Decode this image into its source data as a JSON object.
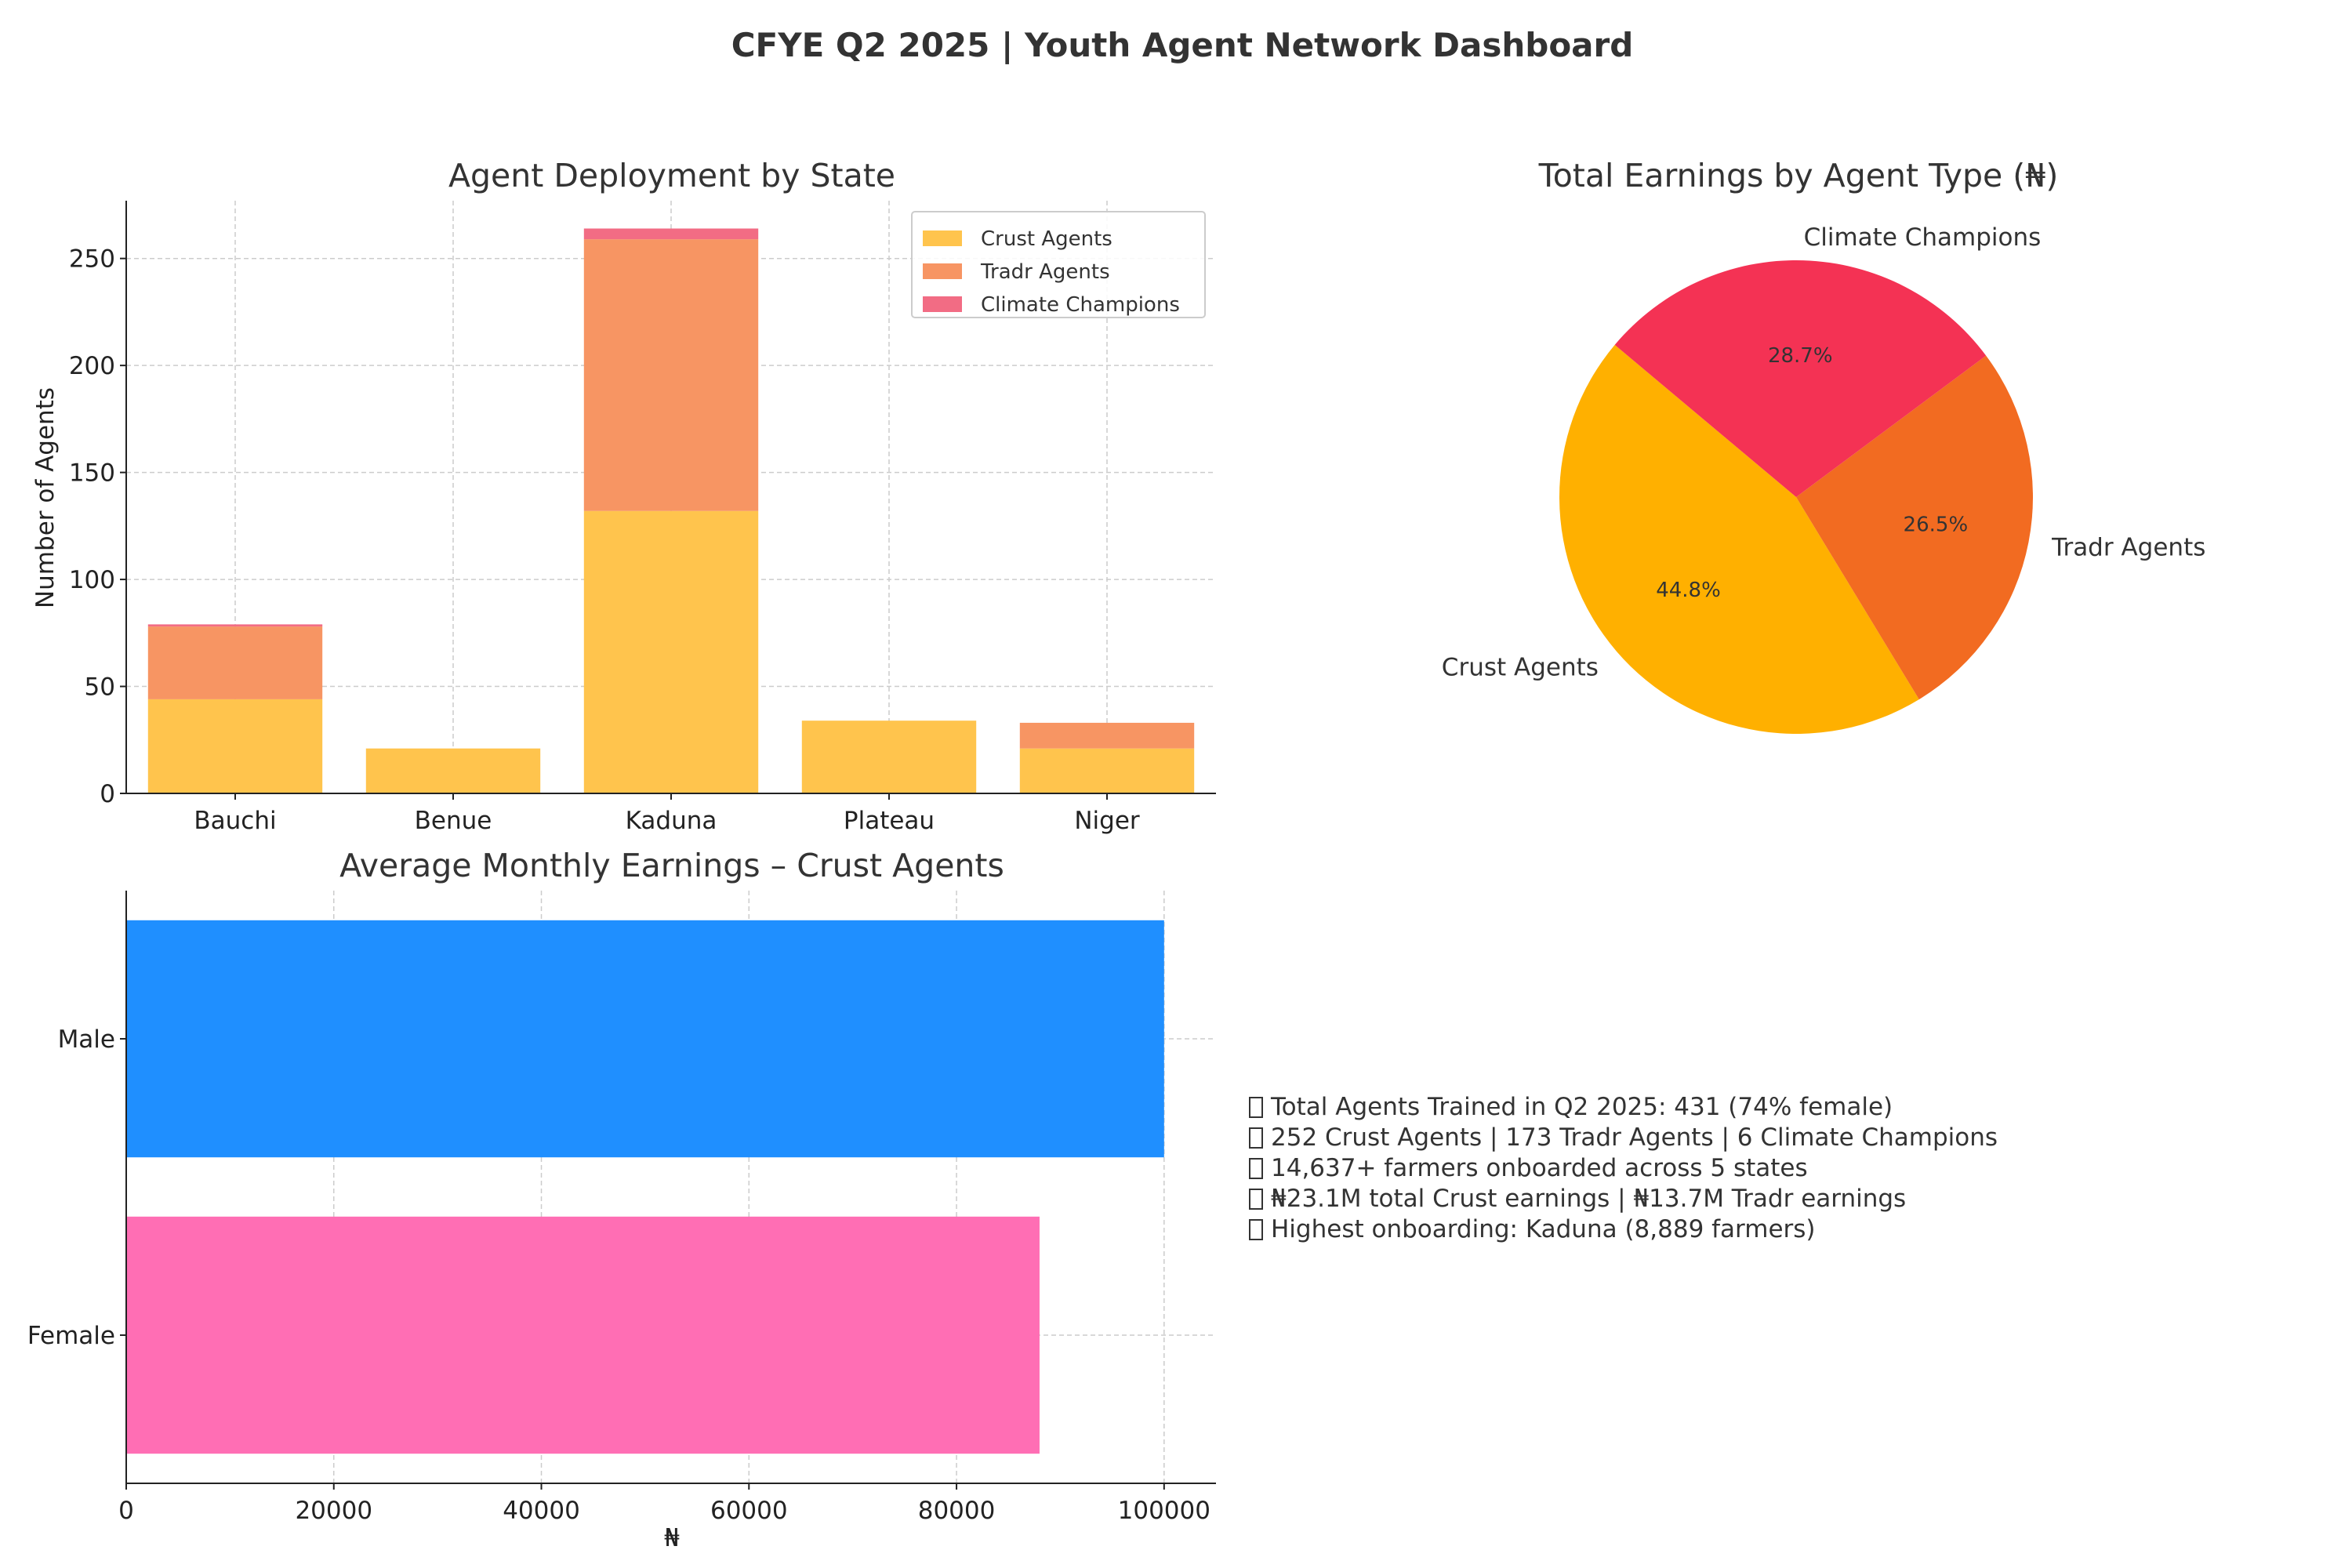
{
  "dashboard_title": "CFYE Q2 2025 | Youth Agent Network Dashboard",
  "colors": {
    "crust_bar": "#ffc44d",
    "tradr_bar": "#f79563",
    "climate_bar": "#f26c84",
    "pie_crust": "#ffb000",
    "pie_tradr": "#f26b21",
    "pie_climate": "#f43254",
    "male_bar": "#1f8fff",
    "female_bar": "#ff6eb4",
    "grid": "#cccccc",
    "text": "#333333"
  },
  "chart_data": [
    {
      "type": "bar",
      "stacked": true,
      "title": "Agent Deployment by State",
      "xlabel": "",
      "ylabel": "Number of Agents",
      "categories": [
        "Bauchi",
        "Benue",
        "Kaduna",
        "Plateau",
        "Niger"
      ],
      "series": [
        {
          "name": "Crust Agents",
          "values": [
            44,
            21,
            132,
            34,
            21
          ]
        },
        {
          "name": "Tradr Agents",
          "values": [
            34,
            0,
            127,
            0,
            12
          ]
        },
        {
          "name": "Climate Champions",
          "values": [
            1,
            0,
            5,
            0,
            0
          ]
        }
      ],
      "ylim": [
        0,
        277
      ],
      "yticks": [
        0,
        50,
        100,
        150,
        200,
        250
      ],
      "grid": true,
      "legend": "top-right"
    },
    {
      "type": "pie",
      "title": "Total Earnings by Agent Type (₦)",
      "labels": [
        "Crust Agents",
        "Tradr Agents",
        "Climate Champions"
      ],
      "values": [
        44.8,
        26.5,
        28.7
      ],
      "pct_labels": [
        "44.8%",
        "26.5%",
        "28.7%"
      ]
    },
    {
      "type": "bar",
      "orientation": "horizontal",
      "title": "Average Monthly Earnings – Crust Agents",
      "xlabel": "₦",
      "ylabel": "",
      "categories": [
        "Male",
        "Female"
      ],
      "values": [
        100000,
        88000
      ],
      "xlim": [
        0,
        105000
      ],
      "xticks": [
        0,
        20000,
        40000,
        60000,
        80000,
        100000
      ],
      "grid": true
    }
  ],
  "summary": [
    "Total Agents Trained in Q2 2025: 431 (74% female)",
    "252 Crust Agents | 173 Tradr Agents | 6 Climate Champions",
    "14,637+ farmers onboarded across 5 states",
    "₦23.1M total Crust earnings | ₦13.7M Tradr earnings",
    "Highest onboarding: Kaduna (8,889 farmers)"
  ]
}
